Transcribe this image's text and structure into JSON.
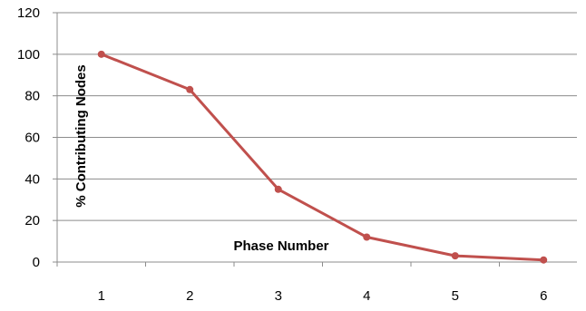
{
  "chart_data": {
    "type": "line",
    "title": "",
    "xlabel": "Phase Number",
    "ylabel": "% Contributing Nodes",
    "x": [
      1,
      2,
      3,
      4,
      5,
      6
    ],
    "categories": [
      "1",
      "2",
      "3",
      "4",
      "5",
      "6"
    ],
    "series": [
      {
        "values": [
          100,
          83,
          35,
          12,
          3,
          1
        ]
      }
    ],
    "ylim": [
      0,
      120
    ],
    "yticks": [
      0,
      20,
      40,
      60,
      80,
      100,
      120
    ],
    "ytick_labels": [
      "0",
      "20",
      "40",
      "60",
      "80",
      "100",
      "120"
    ],
    "grid": true,
    "legend": "none",
    "colors": {
      "line": "#C0504D",
      "grid": "#8C8C8C",
      "axis": "#8C8C8C"
    }
  }
}
